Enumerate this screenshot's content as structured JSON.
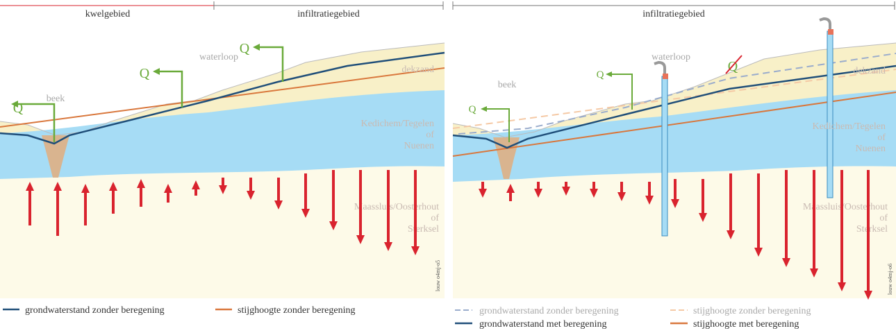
{
  "left_panel": {
    "zones": [
      "kwelgebied",
      "infiltratiegebied"
    ],
    "beek": "beek",
    "q_labels": [
      "Q",
      "Q",
      "Q"
    ],
    "waterloop": "waterloop",
    "dekzand": "dekzand",
    "aquifer_label": [
      "Kedichem/Tegelen",
      "of",
      "Nuenen"
    ],
    "deep_label": [
      "Maassluis/Oosterhout",
      "of",
      "Sterksel"
    ],
    "code": "louw o4mj-o5",
    "legend": [
      "grondwaterstand zonder beregening",
      "stijghoogte zonder beregening"
    ]
  },
  "right_panel": {
    "zone": "infiltratiegebied",
    "beek": "beek",
    "q_labels": [
      "Q",
      "Q",
      "Q"
    ],
    "waterloop": "waterloop",
    "dekzand": "dekzand",
    "aquifer_label": [
      "Kedichem/Tegelen",
      "of",
      "Nuenen"
    ],
    "deep_label": [
      "Maassluis/Oosterhout",
      "of",
      "Sterksel"
    ],
    "code": "louw o4mj-o6",
    "legend": [
      "grondwaterstand zonder beregening",
      "stijghoogte zonder beregening",
      "grondwaterstand met beregening",
      "stijghoogte met beregening"
    ]
  }
}
